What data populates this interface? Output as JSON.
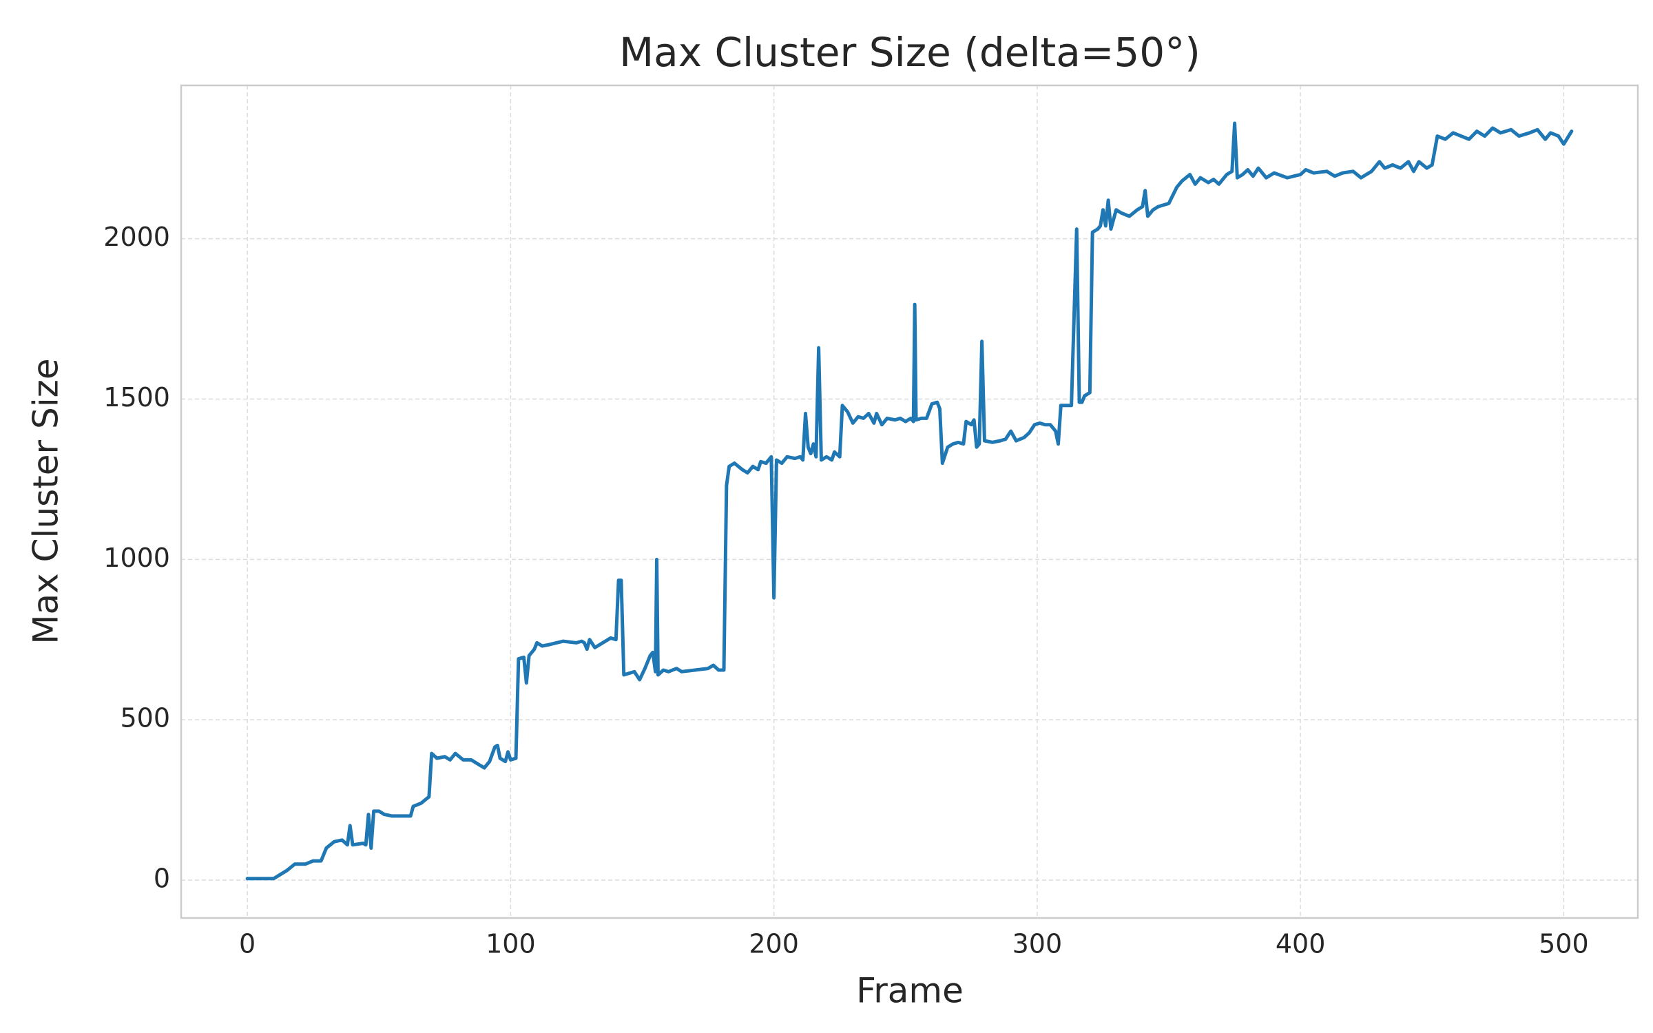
{
  "chart_data": {
    "type": "line",
    "title": "Max Cluster Size (delta=50°)",
    "x_label": "Frame",
    "y_label": "Max Cluster Size",
    "color": "#1f77b4",
    "grid": true,
    "xlim": [
      -25.15,
      528.15
    ],
    "xticks": [
      0,
      100,
      200,
      300,
      400,
      500
    ],
    "ylim": [
      -118,
      2478
    ],
    "yticks": [
      0,
      500,
      1000,
      1500,
      2000
    ],
    "x": [
      0,
      5,
      10,
      15,
      18,
      22,
      25,
      28,
      30,
      33,
      36,
      38,
      39,
      40,
      44,
      45,
      46,
      47,
      48,
      50,
      52,
      55,
      60,
      62,
      63,
      66,
      69,
      70,
      72,
      75,
      77,
      79,
      82,
      85,
      88,
      90,
      92,
      94,
      95,
      96,
      98,
      99,
      100,
      102,
      103,
      105,
      106,
      107,
      109,
      110,
      112,
      115,
      120,
      125,
      127,
      128,
      129,
      130,
      132,
      135,
      138,
      140,
      141,
      142,
      143,
      145,
      147,
      149,
      151,
      153,
      154,
      155,
      155.5,
      156,
      158,
      160,
      163,
      165,
      170,
      175,
      177,
      179,
      181,
      182,
      183,
      185,
      188,
      190,
      192,
      194,
      195,
      197,
      199,
      200,
      201,
      203,
      205,
      208,
      210,
      211,
      212,
      213,
      214,
      215,
      216,
      217,
      218,
      220,
      222,
      223,
      225,
      226,
      228,
      230,
      232,
      234,
      236,
      238,
      239,
      241,
      243,
      246,
      248,
      250,
      252,
      253,
      253.5,
      254,
      256,
      258,
      260,
      262,
      263,
      264,
      266,
      268,
      270,
      272,
      273,
      275,
      276,
      277,
      278,
      279,
      280,
      283,
      286,
      288,
      290,
      292,
      295,
      297,
      299,
      301,
      303,
      305,
      307,
      308,
      309,
      311,
      313,
      315,
      316,
      317,
      318,
      320,
      321,
      323,
      324,
      325,
      326,
      327,
      328,
      330,
      332,
      335,
      338,
      340,
      341,
      342,
      344,
      346,
      350,
      353,
      355,
      358,
      360,
      362,
      365,
      367,
      369,
      372,
      374,
      375,
      376,
      378,
      380,
      382,
      384,
      387,
      390,
      395,
      400,
      402,
      405,
      410,
      413,
      416,
      420,
      423,
      427,
      430,
      432,
      435,
      438,
      441,
      443,
      445,
      448,
      450,
      452,
      455,
      458,
      461,
      464,
      467,
      470,
      473,
      476,
      480,
      483,
      487,
      490,
      493,
      495,
      498,
      500,
      503
    ],
    "values": [
      5,
      5,
      5,
      30,
      50,
      50,
      60,
      60,
      100,
      120,
      125,
      110,
      170,
      110,
      115,
      110,
      205,
      100,
      215,
      215,
      205,
      200,
      200,
      200,
      230,
      240,
      260,
      395,
      380,
      385,
      375,
      395,
      375,
      375,
      360,
      350,
      370,
      415,
      420,
      380,
      370,
      400,
      375,
      380,
      690,
      695,
      615,
      700,
      720,
      740,
      730,
      735,
      745,
      740,
      745,
      740,
      720,
      750,
      725,
      740,
      755,
      750,
      935,
      935,
      640,
      645,
      650,
      625,
      660,
      700,
      710,
      650,
      1000,
      640,
      655,
      650,
      660,
      650,
      655,
      660,
      670,
      655,
      655,
      1230,
      1290,
      1300,
      1280,
      1270,
      1290,
      1280,
      1305,
      1300,
      1320,
      880,
      1310,
      1300,
      1320,
      1315,
      1320,
      1310,
      1455,
      1350,
      1330,
      1360,
      1320,
      1660,
      1310,
      1320,
      1310,
      1335,
      1320,
      1480,
      1460,
      1425,
      1445,
      1440,
      1455,
      1425,
      1455,
      1420,
      1440,
      1435,
      1440,
      1430,
      1440,
      1430,
      1795,
      1435,
      1440,
      1440,
      1485,
      1490,
      1470,
      1300,
      1350,
      1360,
      1365,
      1360,
      1430,
      1420,
      1435,
      1350,
      1360,
      1680,
      1370,
      1365,
      1370,
      1375,
      1400,
      1370,
      1380,
      1395,
      1420,
      1425,
      1420,
      1420,
      1400,
      1360,
      1480,
      1480,
      1480,
      2030,
      1490,
      1490,
      1510,
      1520,
      2020,
      2030,
      2040,
      2090,
      2040,
      2120,
      2030,
      2090,
      2080,
      2070,
      2090,
      2100,
      2150,
      2070,
      2090,
      2100,
      2110,
      2160,
      2180,
      2200,
      2170,
      2190,
      2175,
      2185,
      2170,
      2200,
      2210,
      2360,
      2190,
      2200,
      2215,
      2195,
      2220,
      2190,
      2205,
      2190,
      2200,
      2215,
      2205,
      2210,
      2195,
      2205,
      2210,
      2190,
      2210,
      2240,
      2220,
      2230,
      2220,
      2240,
      2210,
      2240,
      2220,
      2230,
      2320,
      2310,
      2330,
      2320,
      2310,
      2335,
      2320,
      2345,
      2330,
      2340,
      2320,
      2330,
      2340,
      2310,
      2330,
      2320,
      2295,
      2335
    ]
  }
}
